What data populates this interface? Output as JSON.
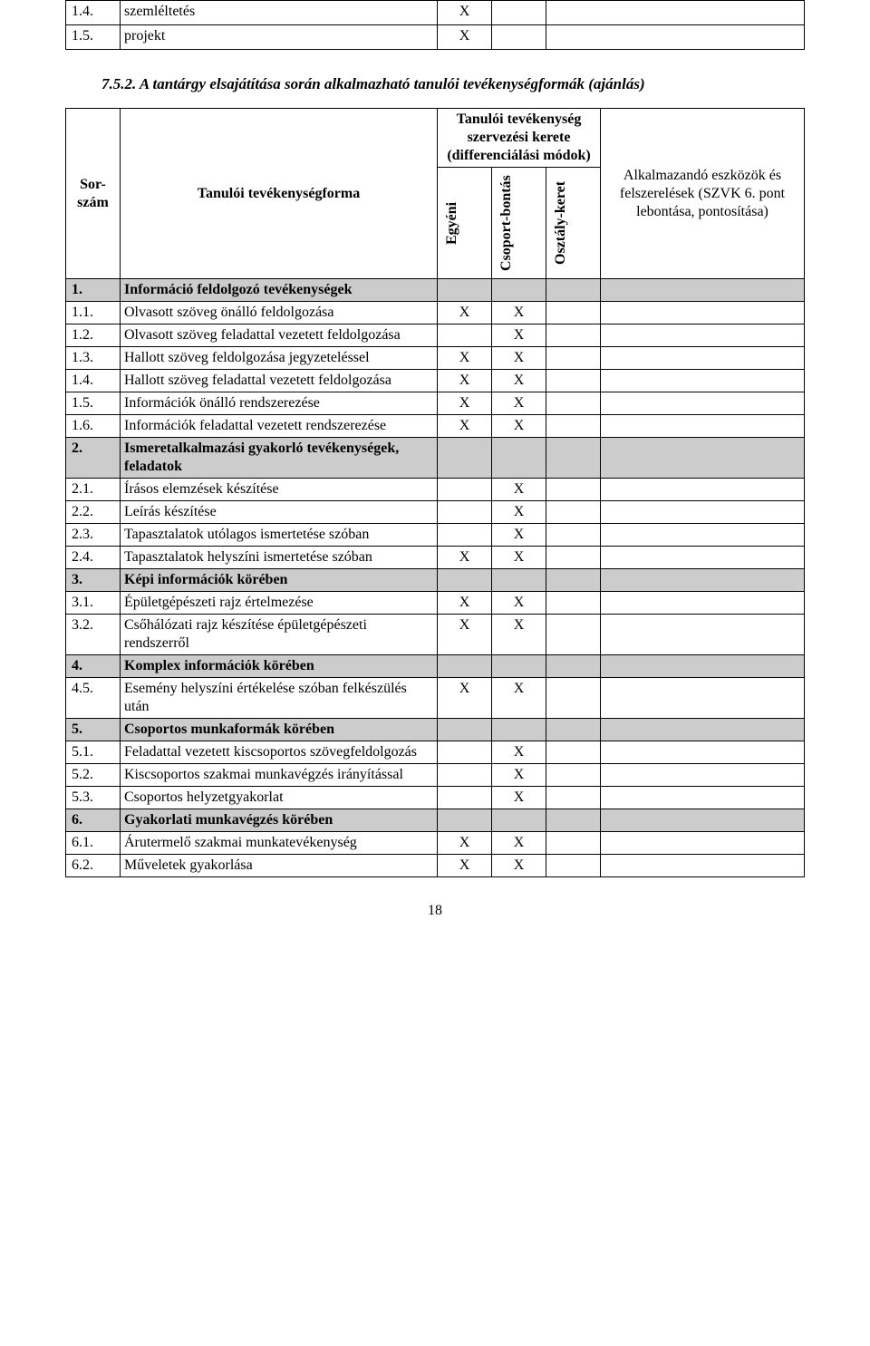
{
  "top_rows": [
    {
      "num": "1.4.",
      "label": "szemléltetés",
      "col1": "X"
    },
    {
      "num": "1.5.",
      "label": "projekt",
      "col1": "X"
    }
  ],
  "section_number": "7.5.2.",
  "section_title": "A tantárgy elsajátítása során alkalmazható tanulói tevékenységformák (ajánlás)",
  "headers": {
    "sor_szam": "Sor-szám",
    "tev_forma": "Tanulói tevékenységforma",
    "group_top": "Tanulói tevékenység szervezési kerete (differenciálási módok)",
    "egyeni": "Egyéni",
    "csoport": "Csoport-bontás",
    "osztaly": "Osztály-keret",
    "alk": "Alkalmazandó eszközök és felszerelések (SZVK 6. pont lebontása, pontosítása)"
  },
  "rows": [
    {
      "type": "section",
      "num": "1.",
      "label": "Információ feldolgozó tevékenységek"
    },
    {
      "type": "data",
      "num": "1.1.",
      "label": "Olvasott szöveg önálló feldolgozása",
      "e": "X",
      "c": "X"
    },
    {
      "type": "data",
      "num": "1.2.",
      "label": "Olvasott szöveg feladattal vezetett feldolgozása",
      "c": "X"
    },
    {
      "type": "data",
      "num": "1.3.",
      "label": "Hallott szöveg feldolgozása jegyzeteléssel",
      "e": "X",
      "c": "X"
    },
    {
      "type": "data",
      "num": "1.4.",
      "label": "Hallott szöveg feladattal vezetett feldolgozása",
      "e": "X",
      "c": "X"
    },
    {
      "type": "data",
      "num": "1.5.",
      "label": "Információk önálló rendszerezése",
      "e": "X",
      "c": "X"
    },
    {
      "type": "data",
      "num": "1.6.",
      "label": "Információk feladattal vezetett rendszerezése",
      "e": "X",
      "c": "X"
    },
    {
      "type": "section",
      "num": "2.",
      "label": "Ismeretalkalmazási gyakorló tevékenységek, feladatok"
    },
    {
      "type": "data",
      "num": "2.1.",
      "label": "Írásos elemzések készítése",
      "c": "X"
    },
    {
      "type": "data",
      "num": "2.2.",
      "label": "Leírás készítése",
      "c": "X"
    },
    {
      "type": "data",
      "num": "2.3.",
      "label": "Tapasztalatok utólagos ismertetése szóban",
      "c": "X"
    },
    {
      "type": "data",
      "num": "2.4.",
      "label": "Tapasztalatok helyszíni ismertetése szóban",
      "e": "X",
      "c": "X"
    },
    {
      "type": "section",
      "num": "3.",
      "label": "Képi információk körében"
    },
    {
      "type": "data",
      "num": "3.1.",
      "label": "Épületgépészeti rajz értelmezése",
      "e": "X",
      "c": "X"
    },
    {
      "type": "data",
      "num": "3.2.",
      "label": "Csőhálózati rajz készítése épületgépészeti rendszerről",
      "e": "X",
      "c": "X"
    },
    {
      "type": "section",
      "num": "4.",
      "label": "Komplex információk körében"
    },
    {
      "type": "data",
      "num": "4.5.",
      "label": "Esemény helyszíni értékelése szóban felkészülés után",
      "e": "X",
      "c": "X"
    },
    {
      "type": "section",
      "num": "5.",
      "label": "Csoportos munkaformák körében"
    },
    {
      "type": "data",
      "num": "5.1.",
      "label": "Feladattal vezetett kiscsoportos szövegfeldolgozás",
      "c": "X"
    },
    {
      "type": "data",
      "num": "5.2.",
      "label": "Kiscsoportos szakmai munkavégzés irányítással",
      "c": "X"
    },
    {
      "type": "data",
      "num": "5.3.",
      "label": "Csoportos helyzetgyakorlat",
      "c": "X"
    },
    {
      "type": "section",
      "num": "6.",
      "label": "Gyakorlati munkavégzés körében"
    },
    {
      "type": "data",
      "num": "6.1.",
      "label": "Árutermelő szakmai munkatevékenység",
      "e": "X",
      "c": "X"
    },
    {
      "type": "data",
      "num": "6.2.",
      "label": "Műveletek gyakorlása",
      "e": "X",
      "c": "X"
    }
  ],
  "page_number": "18",
  "colors": {
    "section_bg": "#cccccc",
    "border": "#000000",
    "text": "#000000",
    "background": "#ffffff"
  }
}
